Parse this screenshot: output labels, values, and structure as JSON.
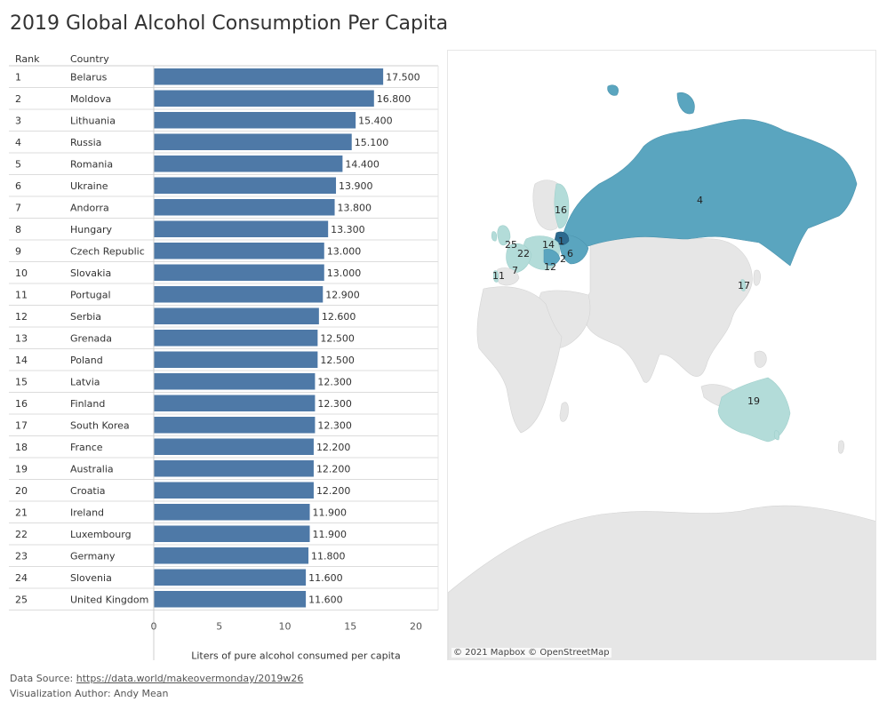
{
  "title": "2019 Global Alcohol Consumption Per Capita",
  "table_headers": {
    "rank": "Rank",
    "country": "Country"
  },
  "chart_data": {
    "type": "bar",
    "orientation": "horizontal",
    "ranks": [
      1,
      2,
      3,
      4,
      5,
      6,
      7,
      8,
      9,
      10,
      11,
      12,
      13,
      14,
      15,
      16,
      17,
      18,
      19,
      20,
      21,
      22,
      23,
      24,
      25
    ],
    "categories": [
      "Belarus",
      "Moldova",
      "Lithuania",
      "Russia",
      "Romania",
      "Ukraine",
      "Andorra",
      "Hungary",
      "Czech Republic",
      "Slovakia",
      "Portugal",
      "Serbia",
      "Grenada",
      "Poland",
      "Latvia",
      "Finland",
      "South Korea",
      "France",
      "Australia",
      "Croatia",
      "Ireland",
      "Luxembourg",
      "Germany",
      "Slovenia",
      "United Kingdom"
    ],
    "values": [
      17.5,
      16.8,
      15.4,
      15.1,
      14.4,
      13.9,
      13.8,
      13.3,
      13.0,
      13.0,
      12.9,
      12.6,
      12.5,
      12.5,
      12.3,
      12.3,
      12.3,
      12.2,
      12.2,
      12.2,
      11.9,
      11.9,
      11.8,
      11.6,
      11.6
    ],
    "value_labels": [
      "17.500",
      "16.800",
      "15.400",
      "15.100",
      "14.400",
      "13.900",
      "13.800",
      "13.300",
      "13.000",
      "13.000",
      "12.900",
      "12.600",
      "12.500",
      "12.500",
      "12.300",
      "12.300",
      "12.300",
      "12.200",
      "12.200",
      "12.200",
      "11.900",
      "11.900",
      "11.800",
      "11.600",
      "11.600"
    ],
    "xlabel": "Liters of pure alcohol consumed per capita",
    "ylabel": "",
    "xlim": [
      0,
      20
    ],
    "xticks": [
      0,
      5,
      10,
      15,
      20
    ],
    "bar_color": "#4e79a7",
    "grid": true
  },
  "map": {
    "attribution": "© 2021 Mapbox  © OpenStreetMap",
    "rank_labels": [
      "4",
      "16",
      "25",
      "14",
      "1",
      "22",
      "6",
      "2",
      "12",
      "7",
      "11",
      "17",
      "19"
    ],
    "colors": {
      "land": "#e6e6e6",
      "light_teal": "#b3dcd9",
      "teal": "#5aa5bf",
      "dark": "#2d6a8f"
    }
  },
  "footer": {
    "source_label": "Data Source: ",
    "source_link": "https://data.world/makeovermonday/2019w26",
    "author": "Visualization Author: Andy Mean"
  }
}
